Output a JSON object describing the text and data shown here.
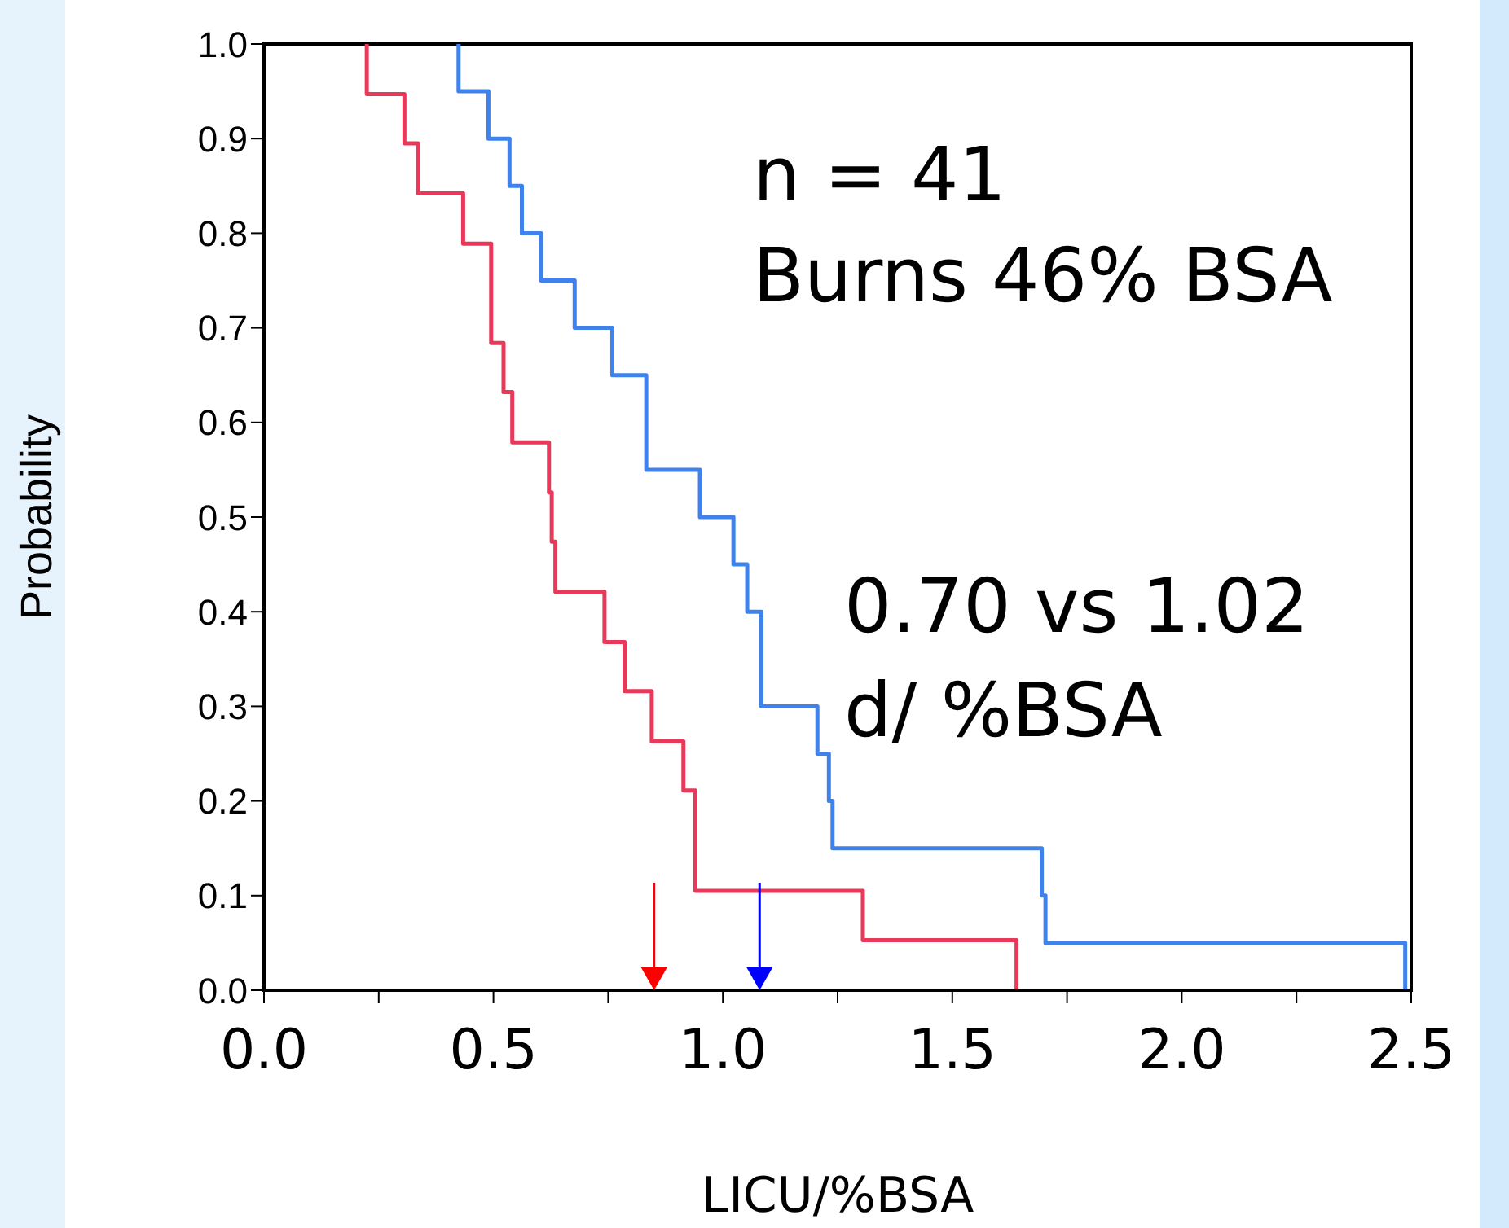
{
  "chart_data": {
    "type": "step",
    "xlabel": "LICU/%BSA",
    "ylabel": "Probability",
    "annotations": [
      "n = 41",
      "Burns 46% BSA",
      "0.70 vs 1.02",
      "d/ %BSA"
    ],
    "series": [
      {
        "color": "#e8395a",
        "x": [
          0.224,
          0.224,
          0.306,
          0.336,
          0.434,
          0.495,
          0.522,
          0.541,
          0.621,
          0.627,
          0.635,
          0.742,
          0.786,
          0.845,
          0.914,
          0.94,
          1.305,
          1.64
        ],
        "values": [
          1.0,
          0.947,
          0.895,
          0.842,
          0.789,
          0.684,
          0.632,
          0.579,
          0.526,
          0.474,
          0.421,
          0.368,
          0.316,
          0.263,
          0.211,
          0.105,
          0.053,
          0
        ]
      },
      {
        "color": "#3f82ec",
        "x": [
          0.424,
          0.424,
          0.489,
          0.535,
          0.562,
          0.604,
          0.677,
          0.759,
          0.833,
          0.95,
          1.023,
          1.053,
          1.084,
          1.206,
          1.231,
          1.239,
          1.695,
          1.703,
          2.487
        ],
        "values": [
          1.0,
          0.95,
          0.9,
          0.85,
          0.8,
          0.75,
          0.7,
          0.65,
          0.55,
          0.5,
          0.45,
          0.4,
          0.3,
          0.25,
          0.2,
          0.15,
          0.1,
          0.05,
          0
        ]
      }
    ],
    "ref_lines": [
      {
        "axis": "x",
        "value": 0.85,
        "color": "#ff0000"
      },
      {
        "axis": "x",
        "value": 1.08,
        "color": "#0000ff"
      }
    ],
    "xlim": [
      0,
      2.5
    ],
    "xticks": [
      {
        "value": 0,
        "label": "0.0"
      },
      {
        "value": 0.25,
        "label": null
      },
      0.5,
      {
        "value": 0.75,
        "label": null
      },
      {
        "value": 1,
        "label": "1.0"
      },
      {
        "value": 1.25,
        "label": null
      },
      1.5,
      {
        "value": 1.75,
        "label": null
      },
      {
        "value": 2,
        "label": "2.0"
      },
      {
        "value": 2.25,
        "label": null
      },
      2.5
    ],
    "ylim": [
      0,
      1
    ],
    "yticks": [
      {
        "value": 0,
        "label": "0.0"
      },
      0.1,
      0.2,
      0.3,
      0.4,
      0.5,
      0.6,
      0.7,
      0.8,
      0.9,
      {
        "value": 1,
        "label": "1.0"
      }
    ],
    "grid": false,
    "legend": false
  }
}
